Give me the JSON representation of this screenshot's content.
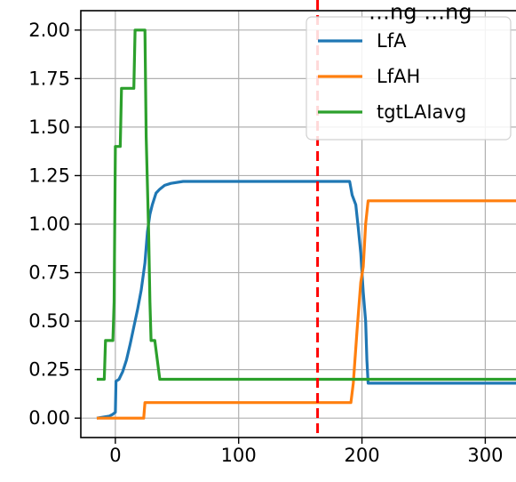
{
  "chart_data": {
    "type": "line",
    "title": "…ng …ng",
    "xlabel": "",
    "ylabel": "",
    "xlim": [
      -28,
      335
    ],
    "ylim": [
      -0.1,
      2.1
    ],
    "grid": true,
    "legend_position": "top-right",
    "x_ticks": [
      0,
      100,
      200,
      300
    ],
    "x_tick_labels": [
      "0",
      "100",
      "200",
      "300"
    ],
    "y_ticks": [
      0,
      0.25,
      0.5,
      0.75,
      1.0,
      1.25,
      1.5,
      1.75,
      2.0
    ],
    "y_tick_labels": [
      "0.00",
      "0.25",
      "0.50",
      "0.75",
      "1.00",
      "1.25",
      "1.50",
      "1.75",
      "2.00"
    ],
    "vline": {
      "x": 164,
      "color": "#ff0000",
      "style": "dashed"
    },
    "series": [
      {
        "name": "LfA",
        "color": "#1f77b4",
        "points": [
          [
            -15,
            0.0
          ],
          [
            -5,
            0.01
          ],
          [
            -2,
            0.02
          ],
          [
            0,
            0.03
          ],
          [
            0.5,
            0.19
          ],
          [
            3,
            0.2
          ],
          [
            6,
            0.24
          ],
          [
            9,
            0.3
          ],
          [
            12,
            0.38
          ],
          [
            15,
            0.47
          ],
          [
            18,
            0.56
          ],
          [
            21,
            0.66
          ],
          [
            24,
            0.8
          ],
          [
            26,
            0.96
          ],
          [
            28,
            1.05
          ],
          [
            30,
            1.1
          ],
          [
            33,
            1.16
          ],
          [
            36,
            1.18
          ],
          [
            40,
            1.2
          ],
          [
            45,
            1.21
          ],
          [
            55,
            1.22
          ],
          [
            100,
            1.22
          ],
          [
            150,
            1.22
          ],
          [
            180,
            1.22
          ],
          [
            190,
            1.22
          ],
          [
            192,
            1.15
          ],
          [
            195,
            1.1
          ],
          [
            197,
            0.98
          ],
          [
            199,
            0.85
          ],
          [
            201,
            0.65
          ],
          [
            203,
            0.5
          ],
          [
            204,
            0.3
          ],
          [
            205,
            0.18
          ],
          [
            250,
            0.18
          ],
          [
            328,
            0.18
          ]
        ]
      },
      {
        "name": "LfAH",
        "color": "#ff7f0e",
        "points": [
          [
            -15,
            0.0
          ],
          [
            23,
            0.0
          ],
          [
            24,
            0.08
          ],
          [
            100,
            0.08
          ],
          [
            150,
            0.08
          ],
          [
            191,
            0.08
          ],
          [
            193,
            0.18
          ],
          [
            196,
            0.45
          ],
          [
            199,
            0.7
          ],
          [
            201,
            0.78
          ],
          [
            203,
            1.0
          ],
          [
            205,
            1.12
          ],
          [
            250,
            1.12
          ],
          [
            328,
            1.12
          ]
        ]
      },
      {
        "name": "tgtLAIavg",
        "color": "#2ca02c",
        "points": [
          [
            -15,
            0.2
          ],
          [
            -9,
            0.2
          ],
          [
            -8,
            0.4
          ],
          [
            -2,
            0.4
          ],
          [
            -1,
            0.6
          ],
          [
            0,
            1.4
          ],
          [
            4,
            1.4
          ],
          [
            5,
            1.7
          ],
          [
            15,
            1.7
          ],
          [
            16,
            2.0
          ],
          [
            24,
            2.0
          ],
          [
            25,
            1.45
          ],
          [
            26,
            1.2
          ],
          [
            27,
            0.95
          ],
          [
            28,
            0.6
          ],
          [
            29,
            0.4
          ],
          [
            32,
            0.4
          ],
          [
            34,
            0.3
          ],
          [
            36,
            0.2
          ],
          [
            100,
            0.2
          ],
          [
            200,
            0.2
          ],
          [
            328,
            0.2
          ]
        ]
      }
    ]
  }
}
